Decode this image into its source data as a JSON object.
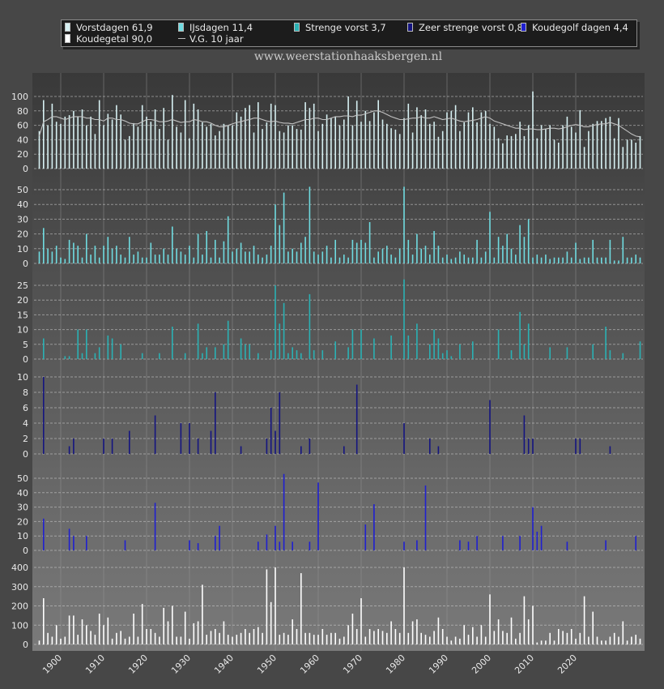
{
  "legend": {
    "items": [
      {
        "label": "Vorstdagen 61,9",
        "color": "#d6f0f2"
      },
      {
        "label": "IJsdagen 11,4",
        "color": "#6fdbe0"
      },
      {
        "label": "Strenge vorst 3,7",
        "color": "#2ab1b4"
      },
      {
        "label": "Zeer strenge vorst 0,8",
        "color": "#151580"
      },
      {
        "label": "Koudegolf dagen 4,4",
        "color": "#2020d0"
      },
      {
        "label": "Koudegetal 90,0",
        "color": "#ffffff"
      },
      {
        "label": "V.G. 10 jaar",
        "color": "#c0c0c0"
      }
    ]
  },
  "site": "www.weerstationhaaksbergen.nl",
  "chart_data": [
    {
      "type": "bar",
      "title": "Vorstdagen",
      "color": "#d6f0f2",
      "ylim": [
        0,
        110
      ],
      "yticks": [
        0,
        20,
        40,
        60,
        80,
        100
      ],
      "x_tick_labels": [
        "1900",
        "1910",
        "1920",
        "1930",
        "1940",
        "1950",
        "1960",
        "1970",
        "1980",
        "1990",
        "2000",
        "2010",
        "2020"
      ],
      "grid": true,
      "x_start": 1895,
      "values": [
        52,
        95,
        60,
        90,
        65,
        62,
        72,
        74,
        80,
        72,
        82,
        60,
        72,
        48,
        95,
        60,
        76,
        68,
        88,
        75,
        40,
        45,
        63,
        58,
        88,
        72,
        65,
        82,
        55,
        84,
        40,
        102,
        58,
        50,
        95,
        42,
        90,
        82,
        64,
        58,
        62,
        46,
        52,
        62,
        60,
        60,
        78,
        72,
        84,
        88,
        50,
        92,
        55,
        64,
        90,
        88,
        52,
        50,
        60,
        60,
        55,
        54,
        92,
        84,
        90,
        52,
        62,
        75,
        70,
        72,
        60,
        68,
        100,
        60,
        94,
        65,
        80,
        66,
        78,
        95,
        68,
        62,
        56,
        54,
        48,
        70,
        90,
        50,
        85,
        74,
        82,
        62,
        65,
        44,
        52,
        78,
        80,
        88,
        52,
        64,
        78,
        85,
        64,
        78,
        80,
        62,
        58,
        42,
        35,
        46,
        45,
        48,
        65,
        45,
        60,
        107,
        42,
        60,
        55,
        60,
        40,
        36,
        60,
        72,
        58,
        50,
        81,
        30,
        52,
        62,
        66,
        66,
        70,
        72,
        42,
        70,
        30,
        40,
        40,
        36,
        45,
        46,
        30,
        26,
        35,
        34,
        70,
        22,
        42
      ],
      "series": [
        {
          "name": "V.G. 10 jaar",
          "values": [
            45,
            65,
            68,
            72,
            72,
            70,
            68,
            70,
            72,
            72,
            72,
            70,
            70,
            68,
            68,
            66,
            70,
            70,
            68,
            68,
            66,
            63,
            62,
            62,
            65,
            68,
            68,
            67,
            65,
            65,
            66,
            68,
            66,
            64,
            65,
            65,
            68,
            67,
            65,
            65,
            63,
            60,
            58,
            58,
            60,
            62,
            64,
            65,
            67,
            68,
            70,
            70,
            68,
            66,
            65,
            66,
            64,
            63,
            63,
            62,
            64,
            66,
            68,
            68,
            70,
            70,
            68,
            68,
            70,
            72,
            72,
            73,
            73,
            72,
            74,
            74,
            76,
            78,
            80,
            80,
            78,
            75,
            72,
            70,
            68,
            68,
            69,
            70,
            70,
            72,
            70,
            70,
            72,
            70,
            68,
            69,
            70,
            68,
            66,
            65,
            66,
            67,
            68,
            70,
            72,
            70,
            66,
            64,
            62,
            60,
            58,
            56,
            56,
            54,
            55,
            55,
            54,
            54,
            55,
            56,
            56,
            55,
            56,
            58,
            60,
            61,
            60,
            58,
            58,
            60,
            61,
            62,
            62,
            64,
            62,
            60,
            56,
            52,
            48,
            45,
            44,
            42,
            40,
            40,
            38,
            38,
            36,
            36,
            37
          ]
        }
      ]
    },
    {
      "type": "bar",
      "title": "IJsdagen",
      "color": "#6fdbe0",
      "ylim": [
        0,
        55
      ],
      "yticks": [
        0,
        10,
        20,
        30,
        40,
        50
      ],
      "x_tick_labels": [
        "1900",
        "1910",
        "1920",
        "1930",
        "1940",
        "1950",
        "1960",
        "1970",
        "1980",
        "1990",
        "2000",
        "2010",
        "2020"
      ],
      "grid": true,
      "x_start": 1895,
      "values": [
        8,
        24,
        10,
        8,
        12,
        4,
        3,
        16,
        14,
        12,
        4,
        20,
        6,
        12,
        4,
        12,
        18,
        10,
        12,
        6,
        4,
        18,
        6,
        8,
        4,
        4,
        14,
        6,
        6,
        10,
        6,
        25,
        10,
        8,
        6,
        12,
        4,
        20,
        6,
        22,
        4,
        16,
        4,
        15,
        32,
        8,
        10,
        14,
        8,
        8,
        12,
        6,
        4,
        6,
        12,
        40,
        26,
        48,
        8,
        10,
        8,
        14,
        18,
        52,
        8,
        6,
        8,
        12,
        4,
        16,
        4,
        6,
        4,
        16,
        14,
        16,
        14,
        28,
        4,
        8,
        10,
        12,
        6,
        4,
        10,
        52,
        16,
        6,
        20,
        10,
        12,
        6,
        22,
        12,
        4,
        6,
        3,
        4,
        8,
        6,
        4,
        4,
        16,
        4,
        8,
        35,
        4,
        18,
        12,
        20,
        10,
        6,
        26,
        18,
        30,
        4,
        6,
        4,
        6,
        3,
        4,
        4,
        4,
        8,
        4,
        14,
        3,
        4,
        4,
        16,
        4,
        4,
        4,
        16,
        2,
        2,
        18,
        4,
        4,
        6,
        4,
        6,
        20,
        14,
        4,
        20,
        4,
        12,
        4
      ]
    },
    {
      "type": "bar",
      "title": "Strenge vorst",
      "color": "#2ab1b4",
      "ylim": [
        0,
        28
      ],
      "yticks": [
        0,
        5,
        10,
        15,
        20,
        25
      ],
      "x_tick_labels": [
        "1900",
        "1910",
        "1920",
        "1930",
        "1940",
        "1950",
        "1960",
        "1970",
        "1980",
        "1990",
        "2000",
        "2010",
        "2020"
      ],
      "grid": true,
      "x_start": 1895,
      "values": [
        0,
        7,
        0,
        0,
        0,
        0,
        1,
        1,
        0,
        10,
        2,
        10,
        0,
        2,
        4,
        0,
        8,
        7,
        0,
        5,
        0,
        0,
        0,
        0,
        2,
        0,
        0,
        0,
        2,
        0,
        0,
        11,
        0,
        0,
        2,
        0,
        0,
        12,
        2,
        4,
        0,
        4,
        0,
        5,
        13,
        0,
        0,
        7,
        5,
        5,
        0,
        2,
        0,
        0,
        3,
        25,
        12,
        19,
        2,
        4,
        3,
        2,
        0,
        22,
        3,
        0,
        3,
        0,
        0,
        6,
        0,
        0,
        4,
        10,
        0,
        10,
        0,
        0,
        7,
        0,
        0,
        0,
        8,
        0,
        0,
        27,
        8,
        0,
        12,
        0,
        0,
        5,
        10,
        7,
        2,
        3,
        1,
        0,
        5,
        0,
        0,
        6,
        0,
        0,
        0,
        0,
        0,
        10,
        0,
        0,
        3,
        0,
        16,
        5,
        12,
        0,
        0,
        0,
        0,
        4,
        0,
        0,
        0,
        4,
        0,
        0,
        0,
        0,
        0,
        5,
        0,
        0,
        11,
        3,
        0,
        0,
        2,
        0,
        0,
        0,
        6,
        0,
        0,
        0,
        0,
        0,
        5,
        0,
        0
      ]
    },
    {
      "type": "bar",
      "title": "Zeer strenge vorst",
      "color": "#151580",
      "ylim": [
        0,
        10
      ],
      "yticks": [
        0,
        2,
        4,
        6,
        8,
        10
      ],
      "x_tick_labels": [
        "1900",
        "1910",
        "1920",
        "1930",
        "1940",
        "1950",
        "1960",
        "1970",
        "1980",
        "1990",
        "2000",
        "2010",
        "2020"
      ],
      "grid": true,
      "x_start": 1895,
      "values": [
        0,
        10,
        0,
        0,
        0,
        0,
        0,
        1,
        2,
        0,
        0,
        0,
        0,
        0,
        0,
        2,
        0,
        2,
        0,
        0,
        0,
        3,
        0,
        0,
        0,
        0,
        0,
        5,
        0,
        0,
        0,
        0,
        0,
        4,
        0,
        4,
        0,
        2,
        0,
        0,
        3,
        8,
        0,
        0,
        0,
        0,
        0,
        1,
        0,
        0,
        0,
        0,
        0,
        2,
        6,
        3,
        8,
        0,
        0,
        0,
        0,
        1,
        0,
        2,
        0,
        0,
        0,
        0,
        0,
        0,
        0,
        1,
        0,
        0,
        9,
        0,
        0,
        0,
        0,
        0,
        0,
        0,
        0,
        0,
        0,
        4,
        0,
        0,
        0,
        0,
        0,
        2,
        0,
        1,
        0,
        0,
        0,
        0,
        0,
        0,
        0,
        0,
        0,
        0,
        0,
        7,
        0,
        0,
        0,
        0,
        0,
        0,
        0,
        5,
        2,
        2,
        0,
        0,
        0,
        0,
        0,
        0,
        0,
        0,
        0,
        2,
        2,
        0,
        0,
        0,
        0,
        0,
        0,
        1,
        0,
        0,
        0,
        0,
        0,
        0,
        0,
        0,
        0,
        0,
        0,
        0,
        0,
        0,
        0
      ]
    },
    {
      "type": "bar",
      "title": "Koudegolf dagen",
      "color": "#2020d0",
      "ylim": [
        0,
        55
      ],
      "yticks": [
        0,
        10,
        20,
        30,
        40,
        50
      ],
      "x_tick_labels": [
        "1900",
        "1910",
        "1920",
        "1930",
        "1940",
        "1950",
        "1960",
        "1970",
        "1980",
        "1990",
        "2000",
        "2010",
        "2020"
      ],
      "grid": true,
      "x_start": 1895,
      "values": [
        0,
        22,
        0,
        0,
        0,
        0,
        0,
        15,
        10,
        0,
        0,
        10,
        0,
        0,
        0,
        0,
        0,
        0,
        0,
        0,
        7,
        0,
        0,
        0,
        0,
        0,
        0,
        33,
        0,
        0,
        0,
        0,
        0,
        0,
        0,
        7,
        0,
        5,
        0,
        0,
        0,
        10,
        17,
        0,
        0,
        0,
        0,
        0,
        0,
        0,
        0,
        6,
        0,
        11,
        0,
        17,
        6,
        53,
        0,
        6,
        0,
        0,
        0,
        6,
        0,
        47,
        0,
        0,
        0,
        0,
        0,
        0,
        0,
        0,
        0,
        0,
        18,
        0,
        32,
        0,
        0,
        0,
        0,
        0,
        0,
        6,
        0,
        0,
        7,
        0,
        45,
        0,
        0,
        0,
        0,
        0,
        0,
        0,
        7,
        0,
        6,
        0,
        10,
        0,
        0,
        0,
        0,
        0,
        10,
        0,
        0,
        0,
        10,
        0,
        0,
        30,
        13,
        17,
        0,
        0,
        0,
        0,
        0,
        6,
        0,
        0,
        0,
        0,
        0,
        0,
        0,
        0,
        7,
        0,
        0,
        0,
        0,
        0,
        0,
        10,
        0,
        0,
        0,
        0,
        0,
        0,
        0,
        0,
        11,
        0,
        0,
        0,
        0,
        0,
        0,
        0,
        0,
        0,
        0,
        0,
        0,
        0,
        0,
        0,
        0,
        0,
        0,
        0,
        0,
        0,
        0,
        0,
        0
      ]
    },
    {
      "type": "bar",
      "title": "Koudegetal",
      "color": "#ffffff",
      "ylim": [
        0,
        420
      ],
      "yticks": [
        0,
        100,
        200,
        300,
        400
      ],
      "x_tick_labels": [
        "1900",
        "1910",
        "1920",
        "1930",
        "1940",
        "1950",
        "1960",
        "1970",
        "1980",
        "1990",
        "2000",
        "2010",
        "2020"
      ],
      "grid": true,
      "x_start": 1895,
      "values": [
        20,
        240,
        60,
        40,
        100,
        30,
        40,
        150,
        150,
        50,
        130,
        100,
        70,
        50,
        160,
        100,
        140,
        30,
        60,
        70,
        30,
        40,
        160,
        40,
        210,
        80,
        80,
        60,
        40,
        190,
        120,
        200,
        40,
        40,
        170,
        30,
        110,
        120,
        310,
        50,
        70,
        80,
        60,
        120,
        50,
        40,
        50,
        60,
        80,
        60,
        80,
        90,
        60,
        390,
        220,
        400,
        50,
        60,
        50,
        130,
        80,
        370,
        60,
        60,
        50,
        50,
        80,
        50,
        60,
        60,
        30,
        40,
        100,
        160,
        80,
        240,
        40,
        80,
        70,
        80,
        70,
        60,
        120,
        80,
        60,
        400,
        60,
        120,
        130,
        60,
        50,
        40,
        70,
        140,
        80,
        40,
        20,
        40,
        30,
        100,
        50,
        90,
        40,
        100,
        40,
        260,
        70,
        130,
        70,
        60,
        140,
        30,
        60,
        250,
        130,
        200,
        10,
        20,
        20,
        60,
        20,
        80,
        70,
        60,
        80,
        30,
        60,
        250,
        40,
        170,
        40,
        20,
        20,
        40,
        60,
        40,
        120,
        20,
        40,
        50,
        30,
        80,
        20,
        60,
        30,
        40,
        10,
        80,
        110,
        100,
        90,
        70,
        20,
        40,
        20,
        50,
        20,
        60,
        50,
        20,
        20,
        40,
        20,
        20,
        20,
        20
      ]
    }
  ]
}
